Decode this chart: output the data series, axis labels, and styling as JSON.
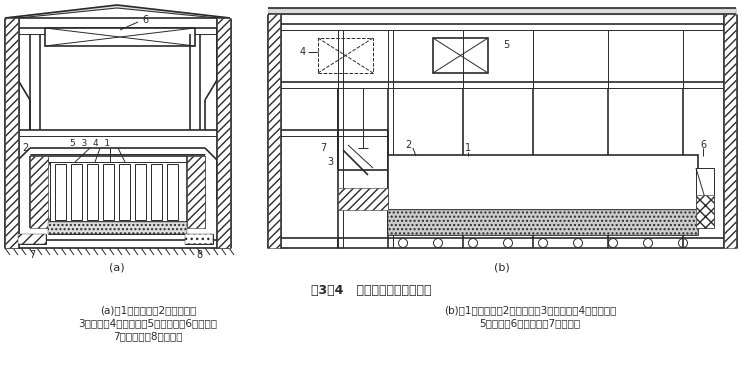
{
  "title": "图3－4   制冰间纵剖面和横断面",
  "label_a": "(a)",
  "label_b": "(b)",
  "caption_a_line1": "(a)：1－制冰池；2－蒸发器；",
  "caption_a_line2": "3－冰桶；4－冰桶架；5－起吊钩；6－吊车；",
  "caption_a_line3": "7－通风管；8－排水沟",
  "caption_b_line1": "(b)：1－制冰池；2－融冰池；3－倒冰架；4－注水器；",
  "caption_b_line2": "5－吊车；6－搅拌器；7－滑冰台",
  "bg_color": "#ffffff",
  "line_color": "#2a2a2a",
  "fig_width": 7.41,
  "fig_height": 3.9
}
